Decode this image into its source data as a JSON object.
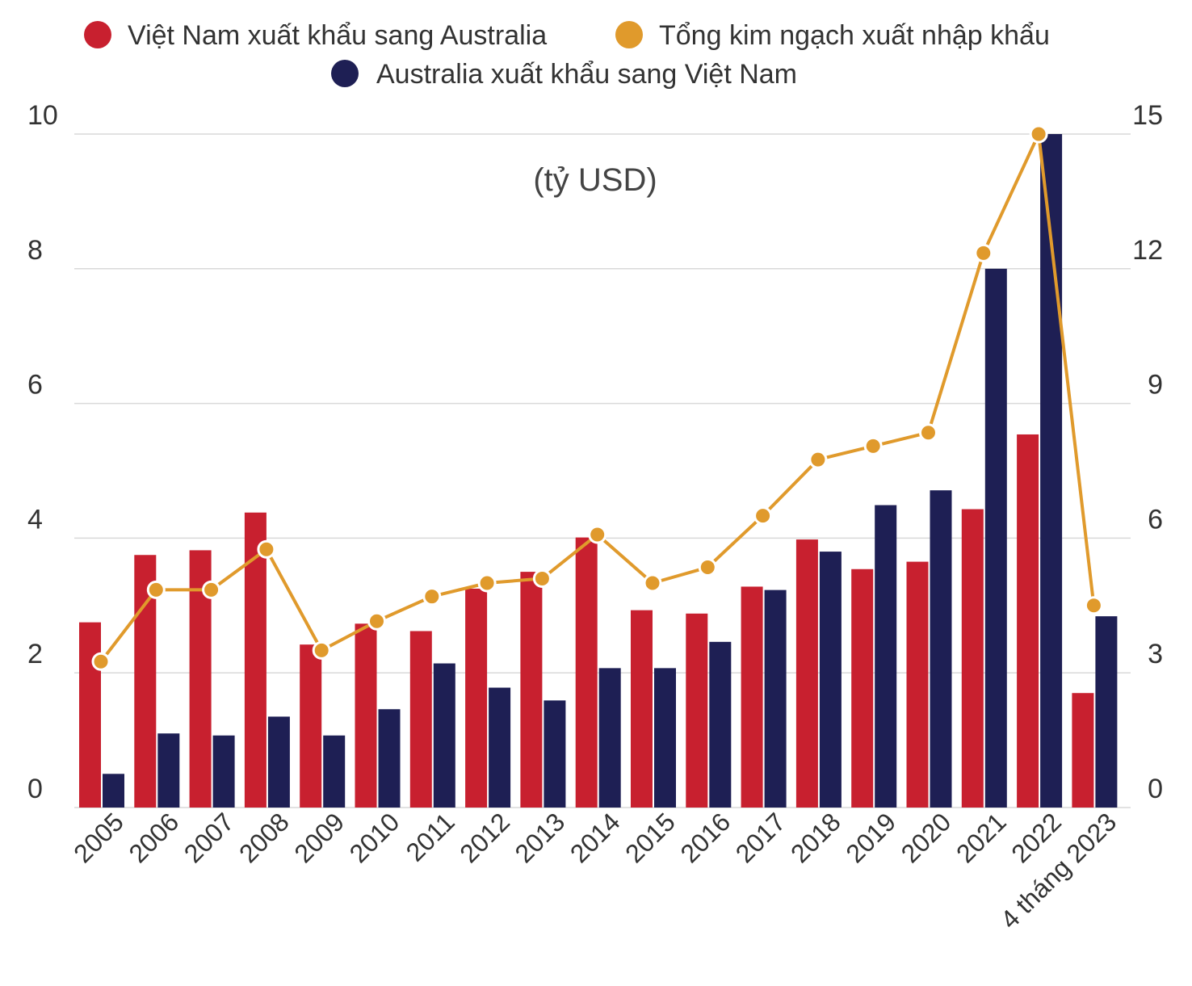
{
  "chart_data": {
    "type": "bar",
    "unit_label": "(tỷ USD)",
    "categories": [
      "2005",
      "2006",
      "2007",
      "2008",
      "2009",
      "2010",
      "2011",
      "2012",
      "2013",
      "2014",
      "2015",
      "2016",
      "2017",
      "2018",
      "2019",
      "2020",
      "2021",
      "2022",
      "4 tháng 2023"
    ],
    "series": [
      {
        "name": "Việt Nam xuất khẩu sang Australia",
        "type": "bar",
        "axis": "left",
        "color": "#c8202f",
        "values": [
          2.75,
          3.75,
          3.82,
          4.38,
          2.42,
          2.73,
          2.62,
          3.25,
          3.5,
          4.01,
          2.93,
          2.88,
          3.28,
          3.98,
          3.54,
          3.65,
          4.43,
          5.54,
          1.7
        ]
      },
      {
        "name": "Australia xuất khẩu sang Việt Nam",
        "type": "bar",
        "axis": "left",
        "color": "#1e1f54",
        "values": [
          0.5,
          1.1,
          1.07,
          1.35,
          1.07,
          1.46,
          2.14,
          1.78,
          1.59,
          2.07,
          2.07,
          2.46,
          3.23,
          3.8,
          4.49,
          4.71,
          8.0,
          10.0,
          2.84
        ]
      },
      {
        "name": "Tổng kim ngạch xuất nhập khẩu",
        "type": "line",
        "axis": "right",
        "color": "#e09a2c",
        "values": [
          3.25,
          4.85,
          4.85,
          5.75,
          3.5,
          4.15,
          4.7,
          5.0,
          5.1,
          6.08,
          5.0,
          5.35,
          6.5,
          7.75,
          8.05,
          8.35,
          12.35,
          15.0,
          4.5
        ]
      }
    ],
    "y_left": {
      "ylim": [
        0,
        10
      ],
      "ticks": [
        "0",
        "2",
        "4",
        "6",
        "8",
        "10"
      ]
    },
    "y_right": {
      "ylim": [
        0,
        15
      ],
      "ticks": [
        "0",
        "3",
        "6",
        "9",
        "12",
        "15"
      ]
    },
    "grid": true,
    "legend_position": "top-center"
  }
}
